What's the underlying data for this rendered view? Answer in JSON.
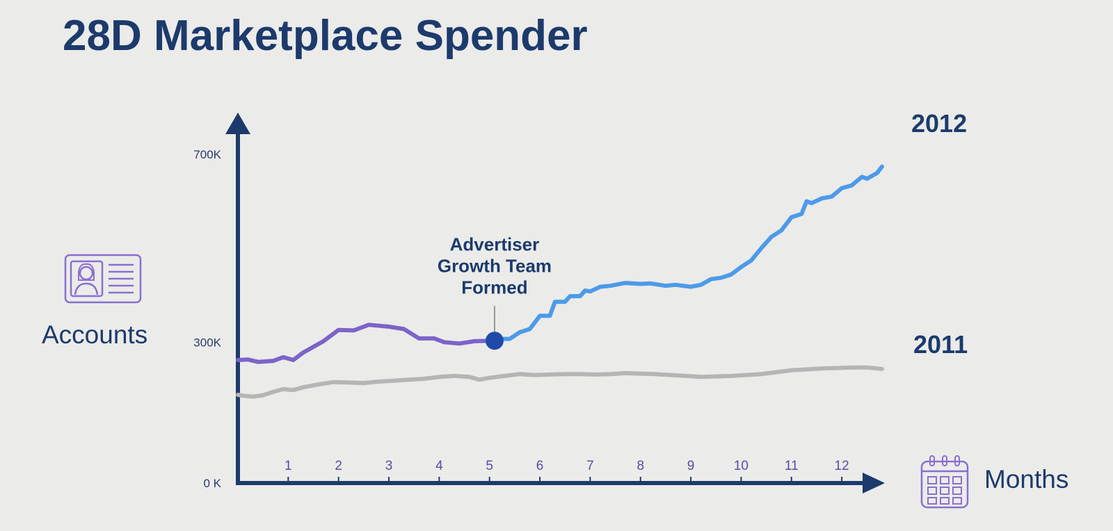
{
  "chart_data": {
    "type": "line",
    "title": "28D Marketplace Spender",
    "ylabel": "Accounts",
    "xlabel": "Months",
    "ylim": [
      0,
      750000
    ],
    "xlim": [
      0,
      12.8
    ],
    "y_ticks": [
      {
        "value": 0,
        "label": "0 K"
      },
      {
        "value": 300000,
        "label": "300K"
      },
      {
        "value": 700000,
        "label": "700K"
      }
    ],
    "x_ticks": [
      {
        "value": 1,
        "label": "1"
      },
      {
        "value": 2,
        "label": "2"
      },
      {
        "value": 3,
        "label": "3"
      },
      {
        "value": 4,
        "label": "4"
      },
      {
        "value": 5,
        "label": "5"
      },
      {
        "value": 6,
        "label": "6"
      },
      {
        "value": 7,
        "label": "7"
      },
      {
        "value": 8,
        "label": "8"
      },
      {
        "value": 9,
        "label": "9"
      },
      {
        "value": 10,
        "label": "10"
      },
      {
        "value": 11,
        "label": "11"
      },
      {
        "value": 12,
        "label": "12"
      }
    ],
    "series": [
      {
        "name": "2012",
        "color_before": "#7b63c9",
        "color_after": "#4d9be8",
        "split_x": 5.1,
        "points": [
          [
            0,
            262000
          ],
          [
            0.2,
            263000
          ],
          [
            0.4,
            258000
          ],
          [
            0.7,
            260000
          ],
          [
            0.9,
            268000
          ],
          [
            1.1,
            262000
          ],
          [
            1.3,
            278000
          ],
          [
            1.7,
            302000
          ],
          [
            2.0,
            326000
          ],
          [
            2.3,
            325000
          ],
          [
            2.6,
            337000
          ],
          [
            3.0,
            333000
          ],
          [
            3.3,
            328000
          ],
          [
            3.6,
            308000
          ],
          [
            3.9,
            308000
          ],
          [
            4.1,
            300000
          ],
          [
            4.4,
            297000
          ],
          [
            4.7,
            302000
          ],
          [
            5.1,
            303000
          ],
          [
            5.2,
            307000
          ],
          [
            5.4,
            307000
          ],
          [
            5.6,
            321000
          ],
          [
            5.8,
            328000
          ],
          [
            6.0,
            356000
          ],
          [
            6.2,
            356000
          ],
          [
            6.3,
            386000
          ],
          [
            6.5,
            386000
          ],
          [
            6.6,
            398000
          ],
          [
            6.8,
            398000
          ],
          [
            6.9,
            410000
          ],
          [
            7.0,
            408000
          ],
          [
            7.2,
            418000
          ],
          [
            7.4,
            420000
          ],
          [
            7.7,
            426000
          ],
          [
            8.0,
            424000
          ],
          [
            8.2,
            425000
          ],
          [
            8.5,
            420000
          ],
          [
            8.7,
            422000
          ],
          [
            9.0,
            418000
          ],
          [
            9.2,
            422000
          ],
          [
            9.4,
            434000
          ],
          [
            9.6,
            437000
          ],
          [
            9.8,
            444000
          ],
          [
            10.0,
            460000
          ],
          [
            10.2,
            474000
          ],
          [
            10.4,
            500000
          ],
          [
            10.6,
            524000
          ],
          [
            10.8,
            538000
          ],
          [
            11.0,
            566000
          ],
          [
            11.2,
            573000
          ],
          [
            11.3,
            600000
          ],
          [
            11.4,
            596000
          ],
          [
            11.6,
            606000
          ],
          [
            11.8,
            610000
          ],
          [
            12.0,
            628000
          ],
          [
            12.2,
            634000
          ],
          [
            12.4,
            652000
          ],
          [
            12.5,
            648000
          ],
          [
            12.7,
            660000
          ],
          [
            12.8,
            674000
          ]
        ]
      },
      {
        "name": "2011",
        "color": "#b5b5b5",
        "points": [
          [
            0,
            188000
          ],
          [
            0.1,
            186000
          ],
          [
            0.3,
            184000
          ],
          [
            0.5,
            187000
          ],
          [
            0.7,
            194000
          ],
          [
            0.9,
            200000
          ],
          [
            1.1,
            198000
          ],
          [
            1.3,
            204000
          ],
          [
            1.6,
            210000
          ],
          [
            1.9,
            215000
          ],
          [
            2.2,
            214000
          ],
          [
            2.5,
            213000
          ],
          [
            2.8,
            216000
          ],
          [
            3.1,
            218000
          ],
          [
            3.4,
            220000
          ],
          [
            3.7,
            222000
          ],
          [
            4.0,
            226000
          ],
          [
            4.3,
            228000
          ],
          [
            4.6,
            226000
          ],
          [
            4.8,
            220000
          ],
          [
            5.0,
            224000
          ],
          [
            5.3,
            228000
          ],
          [
            5.6,
            232000
          ],
          [
            5.9,
            230000
          ],
          [
            6.2,
            231000
          ],
          [
            6.5,
            232000
          ],
          [
            6.8,
            232000
          ],
          [
            7.1,
            231000
          ],
          [
            7.4,
            232000
          ],
          [
            7.7,
            234000
          ],
          [
            8.0,
            233000
          ],
          [
            8.3,
            232000
          ],
          [
            8.6,
            230000
          ],
          [
            8.9,
            228000
          ],
          [
            9.2,
            226000
          ],
          [
            9.5,
            227000
          ],
          [
            9.8,
            228000
          ],
          [
            10.1,
            230000
          ],
          [
            10.4,
            232000
          ],
          [
            10.7,
            236000
          ],
          [
            11.0,
            240000
          ],
          [
            11.3,
            242000
          ],
          [
            11.6,
            244000
          ],
          [
            11.9,
            245000
          ],
          [
            12.2,
            246000
          ],
          [
            12.5,
            246000
          ],
          [
            12.8,
            243000
          ]
        ]
      }
    ],
    "annotation": {
      "x": 5.1,
      "y": 303000,
      "lines": [
        "Advertiser",
        "Growth Team",
        "Formed"
      ]
    }
  },
  "icons": {
    "accounts": "id-card-icon",
    "months": "calendar-icon"
  },
  "colors": {
    "axis": "#1c3a6b",
    "title": "#1c3a6b",
    "tick": "#5a4aa8",
    "marker": "#1f4aa8"
  }
}
